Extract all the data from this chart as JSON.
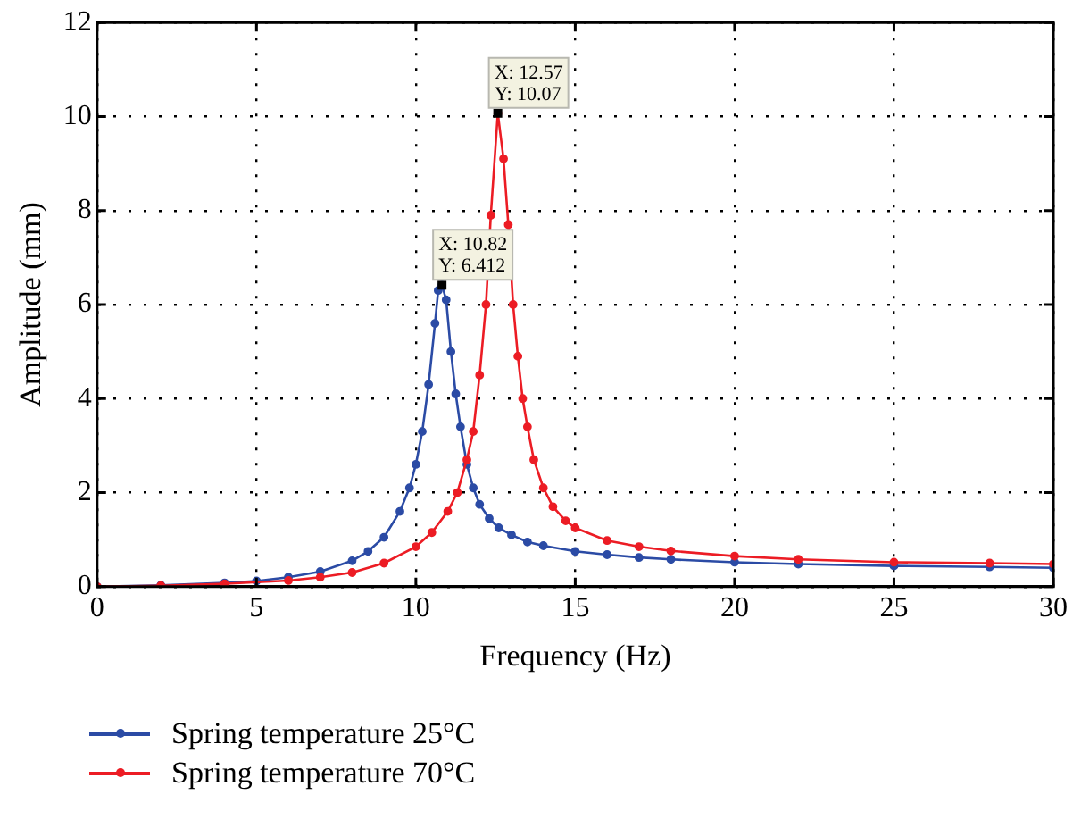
{
  "chart_data": {
    "type": "line",
    "xlabel": "Frequency (Hz)",
    "ylabel": "Amplitude (mm)",
    "xlim": [
      0,
      30
    ],
    "ylim": [
      0,
      12
    ],
    "xticks": [
      0,
      5,
      10,
      15,
      20,
      25,
      30
    ],
    "yticks": [
      0,
      2,
      4,
      6,
      8,
      10,
      12
    ],
    "grid": true,
    "legend": "bottom left",
    "marker": "circle",
    "line_style": "solid",
    "series": [
      {
        "name": "Spring temperature 25°C",
        "color": "#2b4ba5",
        "x": [
          0,
          2,
          4,
          5,
          6,
          7,
          8,
          8.5,
          9,
          9.5,
          9.8,
          10,
          10.2,
          10.4,
          10.6,
          10.7,
          10.82,
          10.95,
          11.1,
          11.25,
          11.4,
          11.6,
          11.8,
          12,
          12.3,
          12.6,
          13,
          13.5,
          14,
          15,
          16,
          17,
          18,
          20,
          22,
          25,
          28,
          30
        ],
        "values": [
          0,
          0.03,
          0.08,
          0.12,
          0.2,
          0.32,
          0.55,
          0.75,
          1.05,
          1.6,
          2.1,
          2.6,
          3.3,
          4.3,
          5.6,
          6.3,
          6.412,
          6.1,
          5.0,
          4.1,
          3.4,
          2.6,
          2.1,
          1.75,
          1.45,
          1.25,
          1.1,
          0.95,
          0.87,
          0.75,
          0.68,
          0.62,
          0.58,
          0.52,
          0.48,
          0.44,
          0.42,
          0.4
        ]
      },
      {
        "name": "Spring temperature 70°C",
        "color": "#ec1c24",
        "x": [
          0,
          2,
          4,
          6,
          7,
          8,
          9,
          10,
          10.5,
          11,
          11.3,
          11.6,
          11.8,
          12,
          12.2,
          12.35,
          12.57,
          12.75,
          12.9,
          13.05,
          13.2,
          13.35,
          13.5,
          13.7,
          14,
          14.3,
          14.7,
          15,
          16,
          17,
          18,
          20,
          22,
          25,
          28,
          30
        ],
        "values": [
          0,
          0.02,
          0.06,
          0.13,
          0.2,
          0.3,
          0.5,
          0.85,
          1.15,
          1.6,
          2.0,
          2.7,
          3.3,
          4.5,
          6.0,
          7.9,
          10.07,
          9.1,
          7.7,
          6.0,
          4.9,
          4.0,
          3.4,
          2.7,
          2.1,
          1.7,
          1.4,
          1.25,
          0.98,
          0.85,
          0.76,
          0.65,
          0.58,
          0.52,
          0.5,
          0.48
        ]
      }
    ],
    "annotations": [
      {
        "text": "X: 10.82\nY: 6.412",
        "x": 10.82,
        "y": 6.412
      },
      {
        "text": "X: 12.57\nY: 10.07",
        "x": 12.57,
        "y": 10.07
      }
    ]
  }
}
